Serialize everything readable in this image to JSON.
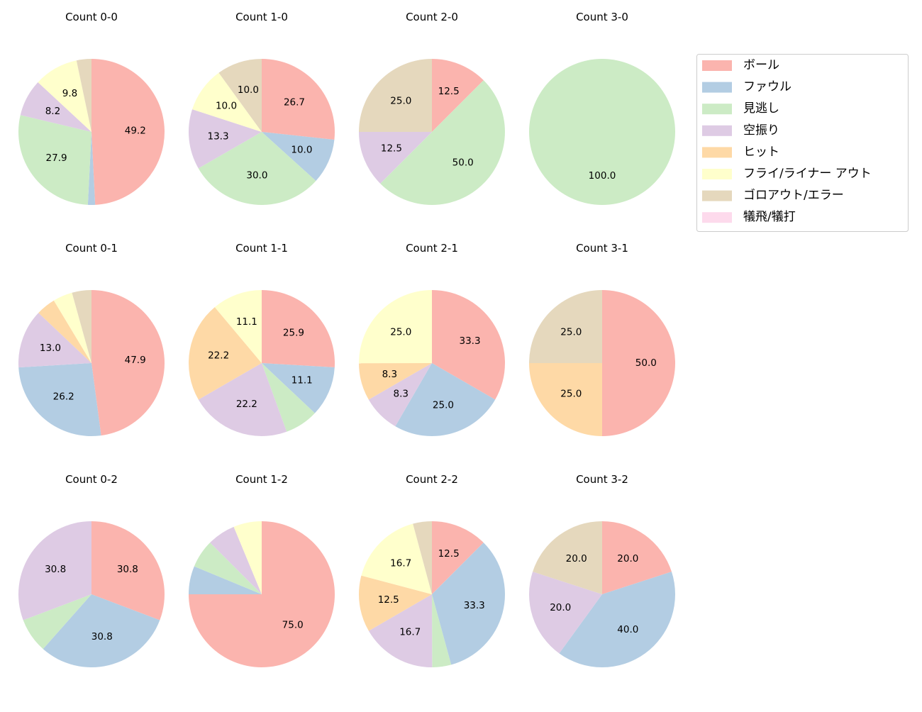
{
  "legend": {
    "placement": "upper-right",
    "entries": [
      {
        "label": "ボール",
        "color": "#fbb4ae"
      },
      {
        "label": "ファウル",
        "color": "#b3cde3"
      },
      {
        "label": "見逃し",
        "color": "#ccebc5"
      },
      {
        "label": "空振り",
        "color": "#decbe4"
      },
      {
        "label": "ヒット",
        "color": "#fed9a6"
      },
      {
        "label": "フライ/ライナー アウト",
        "color": "#ffffcc"
      },
      {
        "label": "ゴロアウト/エラー",
        "color": "#e5d8bd"
      },
      {
        "label": "犠飛/犠打",
        "color": "#fddaec"
      }
    ]
  },
  "chart_data": [
    {
      "type": "pie",
      "title": "Count 0-0",
      "values": [
        49.2,
        1.6,
        27.9,
        8.2,
        0,
        9.8,
        3.3,
        0
      ]
    },
    {
      "type": "pie",
      "title": "Count 1-0",
      "values": [
        26.7,
        10.0,
        30.0,
        13.3,
        0,
        10.0,
        10.0,
        0
      ]
    },
    {
      "type": "pie",
      "title": "Count 2-0",
      "values": [
        12.5,
        0,
        50.0,
        12.5,
        0,
        0,
        25.0,
        0
      ]
    },
    {
      "type": "pie",
      "title": "Count 3-0",
      "values": [
        0,
        0,
        100.0,
        0,
        0,
        0,
        0,
        0
      ]
    },
    {
      "type": "pie",
      "title": "Count 0-1",
      "values": [
        47.8,
        26.1,
        0,
        13.0,
        4.3,
        4.3,
        4.3,
        0
      ]
    },
    {
      "type": "pie",
      "title": "Count 1-1",
      "values": [
        25.9,
        11.1,
        7.4,
        22.2,
        22.2,
        11.1,
        0,
        0
      ]
    },
    {
      "type": "pie",
      "title": "Count 2-1",
      "values": [
        33.3,
        25.0,
        0,
        8.3,
        8.3,
        25.0,
        0,
        0
      ]
    },
    {
      "type": "pie",
      "title": "Count 3-1",
      "values": [
        50.0,
        0,
        0,
        0,
        25.0,
        0,
        25.0,
        0
      ]
    },
    {
      "type": "pie",
      "title": "Count 0-2",
      "values": [
        30.8,
        30.8,
        7.7,
        30.8,
        0,
        0,
        0,
        0
      ]
    },
    {
      "type": "pie",
      "title": "Count 1-2",
      "values": [
        75.0,
        6.25,
        6.25,
        6.25,
        0,
        6.25,
        0,
        0
      ]
    },
    {
      "type": "pie",
      "title": "Count 2-2",
      "values": [
        12.5,
        33.3,
        4.2,
        16.7,
        12.5,
        16.7,
        4.2,
        0
      ]
    },
    {
      "type": "pie",
      "title": "Count 3-2",
      "values": [
        20.0,
        40.0,
        0,
        20.0,
        0,
        0,
        20.0,
        0
      ]
    }
  ]
}
